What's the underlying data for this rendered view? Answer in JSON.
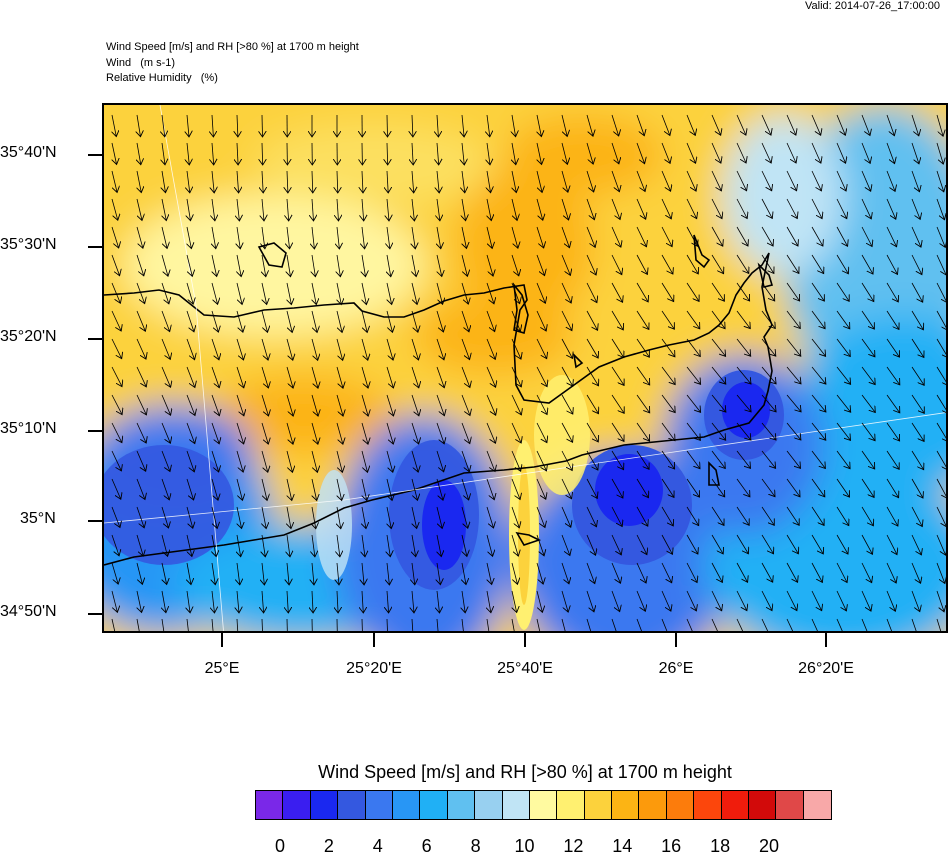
{
  "valid_time": "Valid: 2014-07-26_17:00:00",
  "header": {
    "line1": "Wind Speed [m/s] and RH [>80 %] at 1700 m height",
    "line2": "Wind   (m s-1)",
    "line3": "Relative Humidity   (%)"
  },
  "map": {
    "lat_labels": [
      "35°40'N",
      "35°30'N",
      "35°20'N",
      "35°10'N",
      "35°N",
      "34°50'N"
    ],
    "lon_labels": [
      "25°E",
      "25°20'E",
      "25°40'E",
      "26°E",
      "26°20'E"
    ]
  },
  "colorbar": {
    "title": "Wind Speed [m/s] and RH [>80 %] at 1700 m height",
    "colors": [
      "#7a28e8",
      "#3a1ef0",
      "#1a28f0",
      "#3458e0",
      "#3a78f0",
      "#2896f5",
      "#20b0f5",
      "#60c0f0",
      "#98d0f0",
      "#c0e4f5",
      "#fffaa0",
      "#fff070",
      "#fcd23c",
      "#fcb414",
      "#fc9a0c",
      "#fc7c0c",
      "#fc460c",
      "#f01c0c",
      "#d20a0a",
      "#e04848",
      "#f8a8a8"
    ],
    "labels": [
      "0",
      "2",
      "4",
      "6",
      "8",
      "10",
      "12",
      "14",
      "16",
      "18",
      "20"
    ]
  }
}
